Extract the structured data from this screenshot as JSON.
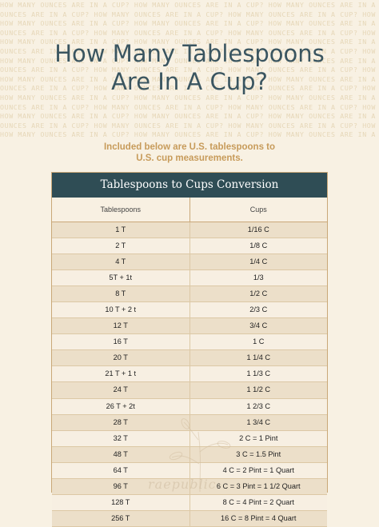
{
  "background_pattern": "HOW MANY OUNCES ARE IN A CUP?",
  "title_line1": "How Many Tablespoons",
  "title_line2": "Are In A Cup?",
  "subtitle_line1": "Included below are U.S. tablespoons to",
  "subtitle_line2": "U.S. cup measurements.",
  "table": {
    "title": "Tablespoons to Cups Conversion",
    "col_tablespoons": "Tablespoons",
    "col_cups": "Cups",
    "rows": [
      {
        "tbsp": "1 T",
        "cups": "1/16 C"
      },
      {
        "tbsp": "2 T",
        "cups": "1/8 C"
      },
      {
        "tbsp": "4 T",
        "cups": "1/4 C"
      },
      {
        "tbsp": "5T + 1t",
        "cups": "1/3"
      },
      {
        "tbsp": "8 T",
        "cups": "1/2 C"
      },
      {
        "tbsp": "10 T + 2 t",
        "cups": "2/3 C"
      },
      {
        "tbsp": "12 T",
        "cups": "3/4 C"
      },
      {
        "tbsp": "16 T",
        "cups": "1 C"
      },
      {
        "tbsp": "20 T",
        "cups": "1 1/4 C"
      },
      {
        "tbsp": "21 T + 1 t",
        "cups": "1 1/3 C"
      },
      {
        "tbsp": "24 T",
        "cups": "1 1/2 C"
      },
      {
        "tbsp": "26 T + 2t",
        "cups": "1 2/3 C"
      },
      {
        "tbsp": "28 T",
        "cups": "1 3/4 C"
      },
      {
        "tbsp": "32 T",
        "cups": "2 C = 1 Pint"
      },
      {
        "tbsp": "48 T",
        "cups": "3 C = 1.5 Pint"
      },
      {
        "tbsp": "64 T",
        "cups": "4 C = 2 Pint = 1 Quart"
      },
      {
        "tbsp": "96 T",
        "cups": "6 C = 3 Pint = 1 1/2 Quart"
      },
      {
        "tbsp": "128 T",
        "cups": "8 C = 4 Pint = 2 Quart"
      },
      {
        "tbsp": "256 T",
        "cups": "16 C = 8 Pint = 4 Quart"
      }
    ]
  },
  "watermark": "raepublic"
}
